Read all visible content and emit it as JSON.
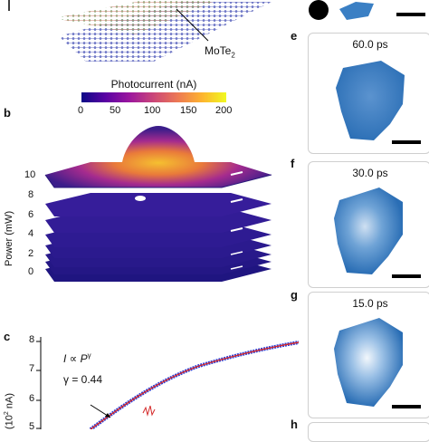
{
  "panel_a": {
    "material_label": "MoTe",
    "material_sub": "2"
  },
  "panel_b": {
    "letter": "b",
    "colorbar_title": "Photocurrent (nA)",
    "colorbar_ticks": [
      "0",
      "50",
      "100",
      "150",
      "200"
    ],
    "y_axis_label": "Power (mW)",
    "y_ticks": [
      "10",
      "8",
      "6",
      "4",
      "2",
      "0"
    ]
  },
  "panel_c": {
    "letter": "c",
    "y_ticks": [
      "8",
      "7",
      "6",
      "5"
    ],
    "y_axis_label": "(10",
    "y_axis_label_sup": "2",
    "y_axis_label_tail": " nA)",
    "law_I": "I",
    "law_prop": " ∝ ",
    "law_P": "P",
    "law_gamma": "γ",
    "gamma_text": "γ = 0.44"
  },
  "panel_e": {
    "letter": "e",
    "time": "60.0 ps"
  },
  "panel_f": {
    "letter": "f",
    "time": "30.0 ps"
  },
  "panel_g": {
    "letter": "g",
    "time": "15.0 ps"
  },
  "panel_h": {
    "letter": "h"
  },
  "colors": {
    "accent_blue": "#3a7fc4",
    "fit_red": "#d42a2a",
    "data_blue": "#2a3fd8"
  }
}
